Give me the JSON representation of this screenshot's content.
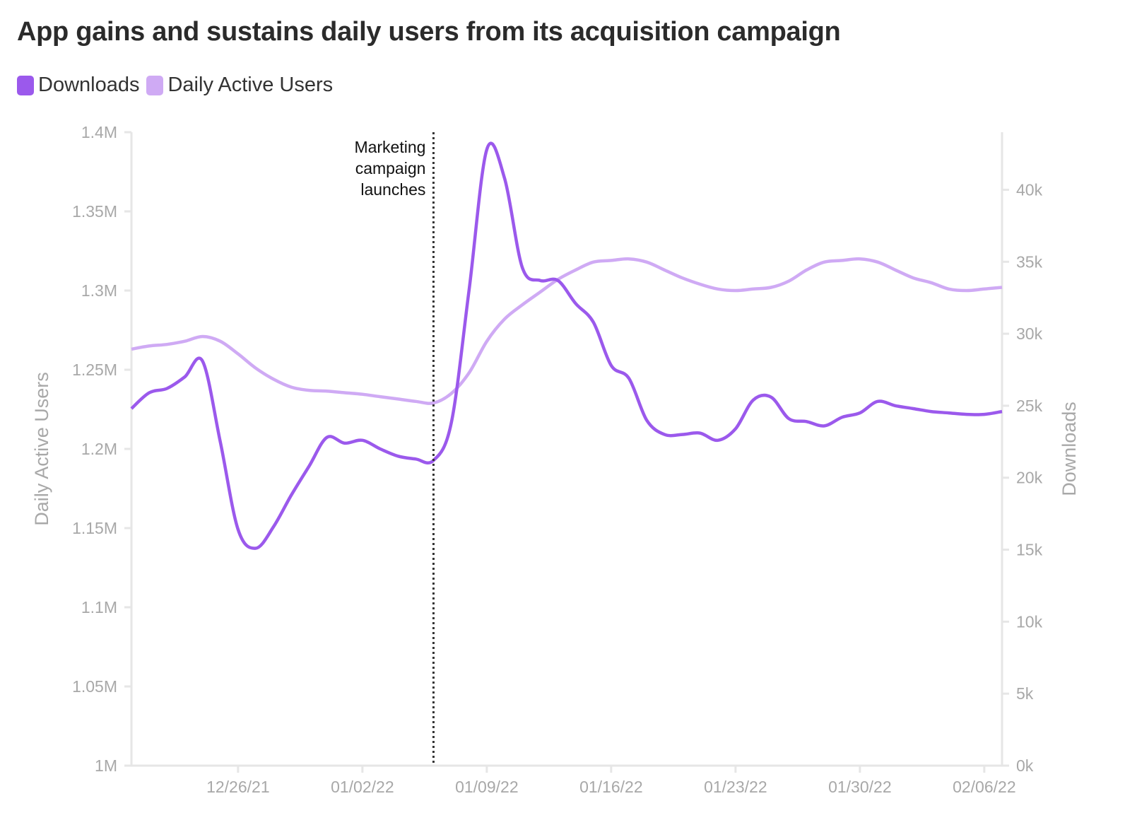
{
  "chart_data": {
    "type": "line",
    "title": "App gains and sustains daily users from its acquisition campaign",
    "legend": {
      "placement": "top-left",
      "entries": [
        "Downloads",
        "Daily Active Users"
      ]
    },
    "colors": {
      "downloads": "#9b59ec",
      "dau": "#cfaaf4",
      "axis": "#e6e6e6",
      "tick_text": "#a8a8a8",
      "annotation": "#333333"
    },
    "y_left": {
      "label": "Daily Active Users",
      "range": [
        1000000,
        1400000
      ],
      "ticks": [
        1000000,
        1050000,
        1100000,
        1150000,
        1200000,
        1250000,
        1300000,
        1350000,
        1400000
      ],
      "tick_labels": [
        "1M",
        "1.05M",
        "1.1M",
        "1.15M",
        "1.2M",
        "1.25M",
        "1.3M",
        "1.35M",
        "1.4M"
      ]
    },
    "y_right": {
      "label": "Downloads",
      "range": [
        0,
        44000
      ],
      "ticks": [
        0,
        5000,
        10000,
        15000,
        20000,
        25000,
        30000,
        35000,
        40000
      ],
      "tick_labels": [
        "0k",
        "5k",
        "10k",
        "15k",
        "20k",
        "25k",
        "30k",
        "35k",
        "40k"
      ]
    },
    "x_axis": {
      "start": "2021-12-20",
      "end": "2022-02-07",
      "ticks": [
        "2021-12-26",
        "2022-01-02",
        "2022-01-09",
        "2022-01-16",
        "2022-01-23",
        "2022-01-30",
        "2022-02-06"
      ],
      "tick_labels": [
        "12/26/21",
        "01/02/22",
        "01/09/22",
        "01/16/22",
        "01/23/22",
        "01/30/22",
        "02/06/22"
      ]
    },
    "annotation": {
      "date": "2022-01-06",
      "lines": [
        "Marketing",
        "campaign",
        "launches"
      ]
    },
    "series": [
      {
        "name": "Daily Active Users",
        "axis": "left",
        "points": [
          [
            "2021-12-20",
            1263000
          ],
          [
            "2021-12-21",
            1265000
          ],
          [
            "2021-12-22",
            1266000
          ],
          [
            "2021-12-23",
            1268000
          ],
          [
            "2021-12-24",
            1271000
          ],
          [
            "2021-12-25",
            1268000
          ],
          [
            "2021-12-26",
            1260000
          ],
          [
            "2021-12-27",
            1251000
          ],
          [
            "2021-12-28",
            1244000
          ],
          [
            "2021-12-29",
            1239000
          ],
          [
            "2021-12-30",
            1237000
          ],
          [
            "2021-12-31",
            1236500
          ],
          [
            "2022-01-01",
            1235500
          ],
          [
            "2022-01-02",
            1234500
          ],
          [
            "2022-01-03",
            1233000
          ],
          [
            "2022-01-04",
            1231500
          ],
          [
            "2022-01-05",
            1230000
          ],
          [
            "2022-01-06",
            1229000
          ],
          [
            "2022-01-07",
            1235000
          ],
          [
            "2022-01-08",
            1248000
          ],
          [
            "2022-01-09",
            1268000
          ],
          [
            "2022-01-10",
            1282000
          ],
          [
            "2022-01-11",
            1291000
          ],
          [
            "2022-01-12",
            1299000
          ],
          [
            "2022-01-13",
            1307000
          ],
          [
            "2022-01-14",
            1313000
          ],
          [
            "2022-01-15",
            1318000
          ],
          [
            "2022-01-16",
            1319000
          ],
          [
            "2022-01-17",
            1320000
          ],
          [
            "2022-01-18",
            1318000
          ],
          [
            "2022-01-19",
            1313000
          ],
          [
            "2022-01-20",
            1308000
          ],
          [
            "2022-01-21",
            1304000
          ],
          [
            "2022-01-22",
            1301000
          ],
          [
            "2022-01-23",
            1300000
          ],
          [
            "2022-01-24",
            1301000
          ],
          [
            "2022-01-25",
            1302000
          ],
          [
            "2022-01-26",
            1306000
          ],
          [
            "2022-01-27",
            1313000
          ],
          [
            "2022-01-28",
            1318000
          ],
          [
            "2022-01-29",
            1319000
          ],
          [
            "2022-01-30",
            1320000
          ],
          [
            "2022-01-31",
            1318000
          ],
          [
            "2022-02-01",
            1313000
          ],
          [
            "2022-02-02",
            1308000
          ],
          [
            "2022-02-03",
            1305000
          ],
          [
            "2022-02-04",
            1301000
          ],
          [
            "2022-02-05",
            1300000
          ],
          [
            "2022-02-06",
            1301000
          ],
          [
            "2022-02-07",
            1302000
          ]
        ]
      },
      {
        "name": "Downloads",
        "axis": "right",
        "points": [
          [
            "2021-12-20",
            24800
          ],
          [
            "2021-12-21",
            25900
          ],
          [
            "2021-12-22",
            26200
          ],
          [
            "2021-12-23",
            27000
          ],
          [
            "2021-12-24",
            28100
          ],
          [
            "2021-12-25",
            22500
          ],
          [
            "2021-12-26",
            16400
          ],
          [
            "2021-12-27",
            15100
          ],
          [
            "2021-12-28",
            16600
          ],
          [
            "2021-12-29",
            18800
          ],
          [
            "2021-12-30",
            20800
          ],
          [
            "2021-12-31",
            22800
          ],
          [
            "2022-01-01",
            22400
          ],
          [
            "2022-01-02",
            22600
          ],
          [
            "2022-01-03",
            22000
          ],
          [
            "2022-01-04",
            21500
          ],
          [
            "2022-01-05",
            21300
          ],
          [
            "2022-01-06",
            21200
          ],
          [
            "2022-01-07",
            23800
          ],
          [
            "2022-01-08",
            33000
          ],
          [
            "2022-01-09",
            42800
          ],
          [
            "2022-01-10",
            40800
          ],
          [
            "2022-01-11",
            34600
          ],
          [
            "2022-01-12",
            33700
          ],
          [
            "2022-01-13",
            33700
          ],
          [
            "2022-01-14",
            32100
          ],
          [
            "2022-01-15",
            30800
          ],
          [
            "2022-01-16",
            27800
          ],
          [
            "2022-01-17",
            26900
          ],
          [
            "2022-01-18",
            24000
          ],
          [
            "2022-01-19",
            23000
          ],
          [
            "2022-01-20",
            23000
          ],
          [
            "2022-01-21",
            23100
          ],
          [
            "2022-01-22",
            22600
          ],
          [
            "2022-01-23",
            23400
          ],
          [
            "2022-01-24",
            25400
          ],
          [
            "2022-01-25",
            25600
          ],
          [
            "2022-01-26",
            24100
          ],
          [
            "2022-01-27",
            23900
          ],
          [
            "2022-01-28",
            23600
          ],
          [
            "2022-01-29",
            24200
          ],
          [
            "2022-01-30",
            24500
          ],
          [
            "2022-01-31",
            25300
          ],
          [
            "2022-02-01",
            25000
          ],
          [
            "2022-02-02",
            24800
          ],
          [
            "2022-02-03",
            24600
          ],
          [
            "2022-02-04",
            24500
          ],
          [
            "2022-02-05",
            24400
          ],
          [
            "2022-02-06",
            24400
          ],
          [
            "2022-02-07",
            24600
          ]
        ]
      }
    ]
  }
}
